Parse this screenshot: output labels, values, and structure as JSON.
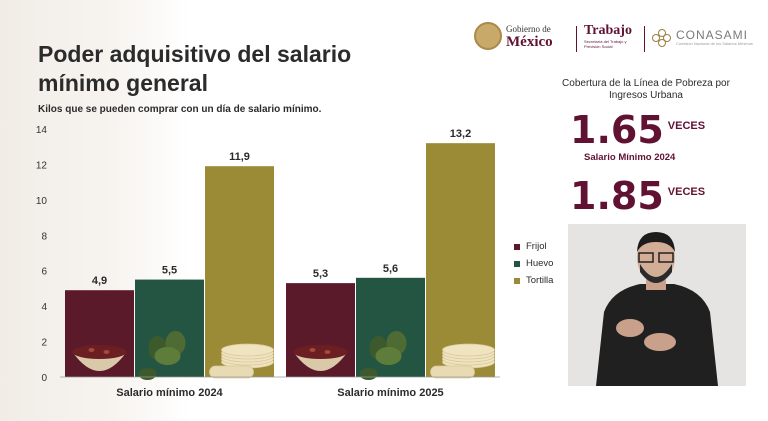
{
  "header": {
    "gobierno_small": "Gobierno de",
    "gobierno_big": "México",
    "trabajo_big": "Trabajo",
    "trabajo_small": "Secretaría del Trabajo y Previsión Social",
    "conasami": "CONASAMI",
    "conasami_small": "Comisión Nacional de los Salarios Mínimos"
  },
  "cobertura": {
    "title": "Cobertura de la Línea de Pobreza por Ingresos Urbana",
    "value_2024": "1.65",
    "unit_2024": "VECES",
    "label_2024": "Salario Mínimo 2024",
    "value_2025": "1.85",
    "unit_2025": "VECES"
  },
  "colors": {
    "frijol": "#5b1a2a",
    "huevo": "#245542",
    "tortilla": "#9b8a36",
    "accent": "#611232"
  },
  "icons": [
    "bean-bowl-icon",
    "avocado-egg-icon",
    "tortilla-stack-icon"
  ],
  "chart_data": {
    "type": "bar",
    "title": "Poder adquisitivo del salario mínimo general",
    "subtitle": "Kilos que se pueden comprar con un día de salario mínimo.",
    "xlabel": "",
    "ylabel": "",
    "categories": [
      "Salario mínimo 2024",
      "Salario mínimo 2025"
    ],
    "series": [
      {
        "name": "Frijol",
        "values": [
          4.9,
          5.3
        ],
        "labels": [
          "4,9",
          "5,3"
        ]
      },
      {
        "name": "Huevo",
        "values": [
          5.5,
          5.6
        ],
        "labels": [
          "5,5",
          "5,6"
        ]
      },
      {
        "name": "Tortilla",
        "values": [
          11.9,
          13.2
        ],
        "labels": [
          "11,9",
          "13,2"
        ]
      }
    ],
    "ylim": [
      0,
      14
    ],
    "yticks": [
      0,
      2,
      4,
      6,
      8,
      10,
      12,
      14
    ],
    "grid": false,
    "legend": "right"
  }
}
